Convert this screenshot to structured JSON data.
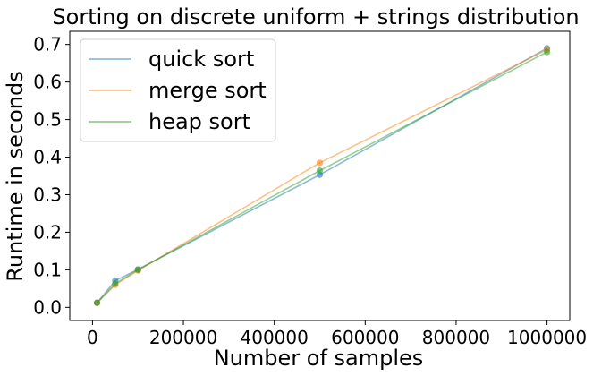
{
  "chart_data": {
    "type": "line",
    "title": "Sorting on discrete uniform + strings distribution",
    "xlabel": "Number of samples",
    "ylabel": "Runtime in seconds",
    "x": [
      10000,
      50000,
      100000,
      500000,
      1000000
    ],
    "xlim": [
      -50000,
      1050000
    ],
    "ylim": [
      -0.035,
      0.735
    ],
    "xticks": [
      0,
      200000,
      400000,
      600000,
      800000,
      1000000
    ],
    "xtick_labels": [
      "0",
      "200000",
      "400000",
      "600000",
      "800000",
      "1000000"
    ],
    "yticks": [
      0.0,
      0.1,
      0.2,
      0.3,
      0.4,
      0.5,
      0.6,
      0.7
    ],
    "ytick_labels": [
      "0.0",
      "0.1",
      "0.2",
      "0.3",
      "0.4",
      "0.5",
      "0.6",
      "0.7"
    ],
    "grid": false,
    "legend_position": "top-left",
    "series": [
      {
        "name": "quick sort",
        "color": "#1f77b4",
        "values": [
          0.012,
          0.071,
          0.101,
          0.353,
          0.69
        ]
      },
      {
        "name": "merge sort",
        "color": "#ff7f0e",
        "values": [
          0.012,
          0.06,
          0.098,
          0.385,
          0.686
        ]
      },
      {
        "name": "heap sort",
        "color": "#2ca02c",
        "values": [
          0.012,
          0.063,
          0.1,
          0.364,
          0.68
        ]
      }
    ]
  }
}
